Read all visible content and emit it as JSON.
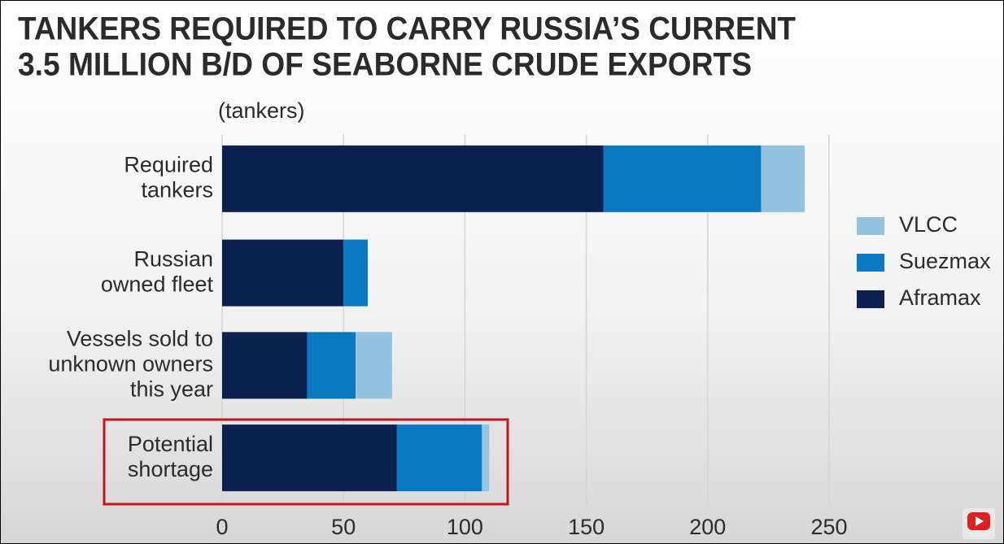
{
  "chart_data": {
    "type": "bar",
    "orientation": "horizontal",
    "stacked": true,
    "title": [
      "TANKERS REQUIRED TO CARRY RUSSIA’S CURRENT",
      "3.5 MILLION B/D OF SEABORNE CRUDE EXPORTS"
    ],
    "axis_label": "(tankers)",
    "categories": [
      [
        "Required",
        "tankers"
      ],
      [
        "Russian",
        "owned fleet"
      ],
      [
        "Vessels sold to",
        "unknown owners",
        "this year"
      ],
      [
        "Potential",
        "shortage"
      ]
    ],
    "series": [
      {
        "name": "Aframax",
        "color": "#0b2150",
        "values": [
          157,
          50,
          35,
          72
        ]
      },
      {
        "name": "Suezmax",
        "color": "#0a79c2",
        "values": [
          65,
          10,
          20,
          35
        ]
      },
      {
        "name": "VLCC",
        "color": "#94c3e0",
        "values": [
          18,
          0,
          15,
          3
        ]
      }
    ],
    "xlim": [
      0,
      250
    ],
    "xticks": [
      0,
      50,
      100,
      150,
      200,
      250
    ],
    "grid": true,
    "legend": "right"
  }
}
